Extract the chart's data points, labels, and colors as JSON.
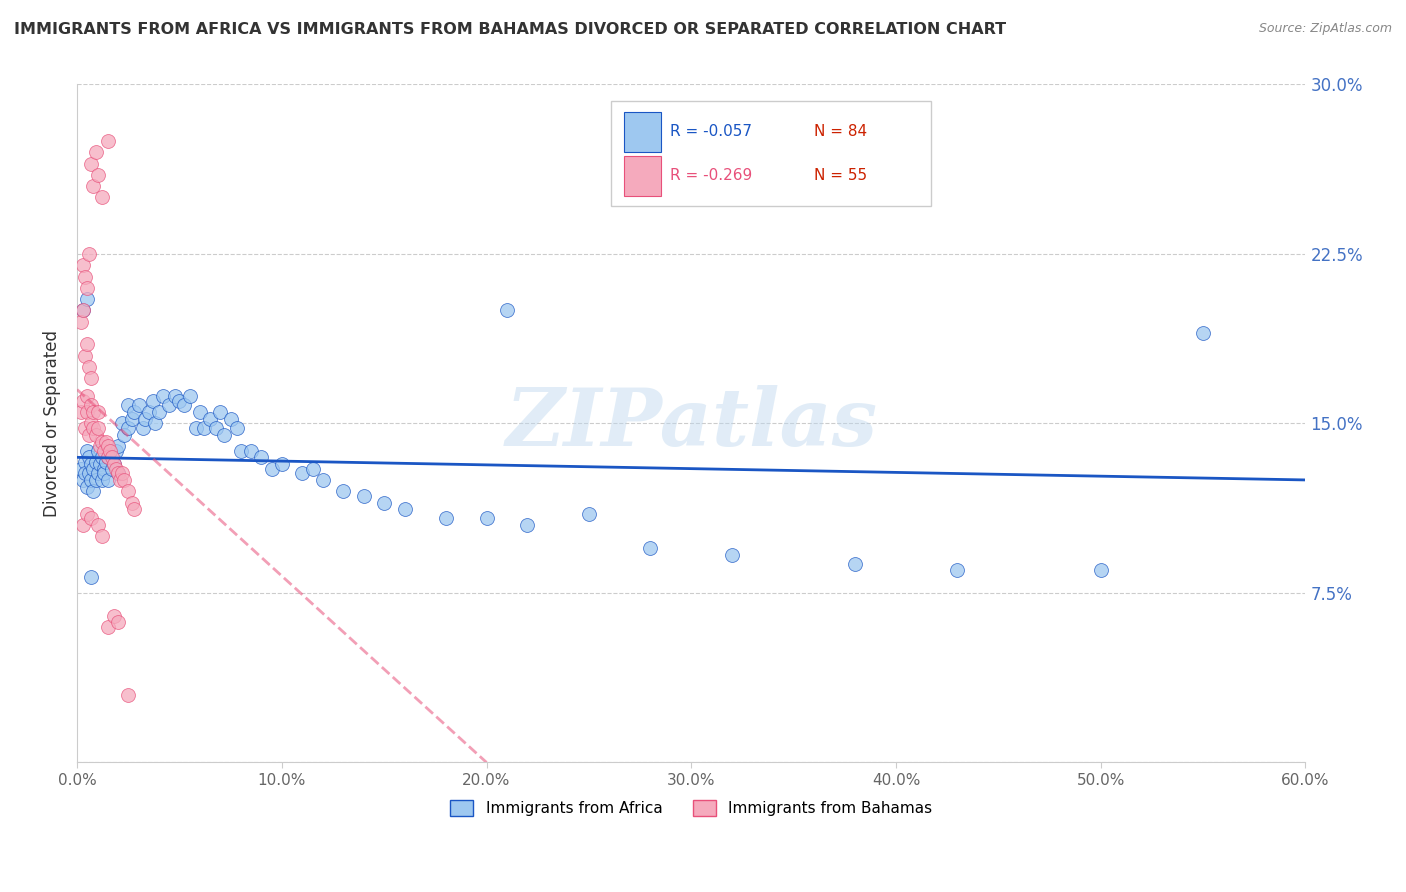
{
  "title": "IMMIGRANTS FROM AFRICA VS IMMIGRANTS FROM BAHAMAS DIVORCED OR SEPARATED CORRELATION CHART",
  "source": "Source: ZipAtlas.com",
  "ylabel": "Divorced or Separated",
  "xlim": [
    0.0,
    0.6
  ],
  "ylim": [
    0.0,
    0.3
  ],
  "xtick_vals": [
    0.0,
    0.1,
    0.2,
    0.3,
    0.4,
    0.5,
    0.6
  ],
  "xtick_labels": [
    "0.0%",
    "10.0%",
    "20.0%",
    "30.0%",
    "40.0%",
    "50.0%",
    "60.0%"
  ],
  "ytick_vals": [
    0.0,
    0.075,
    0.15,
    0.225,
    0.3
  ],
  "ytick_labels_right": [
    "",
    "7.5%",
    "15.0%",
    "22.5%",
    "30.0%"
  ],
  "color_africa": "#9EC8F0",
  "color_bahamas": "#F5AABD",
  "line_color_africa": "#1A56C4",
  "line_color_bahamas": "#E8507A",
  "legend_r_africa": "R = -0.057",
  "legend_n_africa": "N = 84",
  "legend_r_bahamas": "R = -0.269",
  "legend_n_bahamas": "N = 55",
  "legend_label_africa": "Immigrants from Africa",
  "legend_label_bahamas": "Immigrants from Bahamas",
  "watermark": "ZIPatlas",
  "africa_x": [
    0.002,
    0.003,
    0.004,
    0.004,
    0.005,
    0.005,
    0.006,
    0.006,
    0.007,
    0.007,
    0.008,
    0.008,
    0.009,
    0.009,
    0.01,
    0.01,
    0.011,
    0.012,
    0.012,
    0.013,
    0.013,
    0.014,
    0.015,
    0.015,
    0.016,
    0.017,
    0.018,
    0.019,
    0.02,
    0.02,
    0.022,
    0.023,
    0.025,
    0.025,
    0.027,
    0.028,
    0.03,
    0.032,
    0.033,
    0.035,
    0.037,
    0.038,
    0.04,
    0.042,
    0.045,
    0.048,
    0.05,
    0.052,
    0.055,
    0.058,
    0.06,
    0.062,
    0.065,
    0.068,
    0.07,
    0.072,
    0.075,
    0.078,
    0.08,
    0.085,
    0.09,
    0.095,
    0.1,
    0.11,
    0.115,
    0.12,
    0.13,
    0.14,
    0.15,
    0.16,
    0.18,
    0.2,
    0.22,
    0.25,
    0.28,
    0.32,
    0.38,
    0.43,
    0.5,
    0.55,
    0.003,
    0.005,
    0.007,
    0.21
  ],
  "africa_y": [
    0.13,
    0.125,
    0.133,
    0.128,
    0.138,
    0.122,
    0.135,
    0.128,
    0.132,
    0.125,
    0.13,
    0.12,
    0.133,
    0.125,
    0.138,
    0.128,
    0.132,
    0.135,
    0.125,
    0.13,
    0.128,
    0.133,
    0.135,
    0.125,
    0.138,
    0.13,
    0.132,
    0.138,
    0.14,
    0.128,
    0.15,
    0.145,
    0.158,
    0.148,
    0.152,
    0.155,
    0.158,
    0.148,
    0.152,
    0.155,
    0.16,
    0.15,
    0.155,
    0.162,
    0.158,
    0.162,
    0.16,
    0.158,
    0.162,
    0.148,
    0.155,
    0.148,
    0.152,
    0.148,
    0.155,
    0.145,
    0.152,
    0.148,
    0.138,
    0.138,
    0.135,
    0.13,
    0.132,
    0.128,
    0.13,
    0.125,
    0.12,
    0.118,
    0.115,
    0.112,
    0.108,
    0.108,
    0.105,
    0.11,
    0.095,
    0.092,
    0.088,
    0.085,
    0.085,
    0.19,
    0.2,
    0.205,
    0.082,
    0.2
  ],
  "bahamas_x": [
    0.002,
    0.003,
    0.004,
    0.005,
    0.005,
    0.006,
    0.007,
    0.007,
    0.008,
    0.008,
    0.009,
    0.01,
    0.01,
    0.011,
    0.012,
    0.013,
    0.014,
    0.015,
    0.015,
    0.016,
    0.017,
    0.018,
    0.019,
    0.02,
    0.021,
    0.022,
    0.023,
    0.025,
    0.027,
    0.028,
    0.002,
    0.003,
    0.004,
    0.005,
    0.006,
    0.007,
    0.003,
    0.004,
    0.005,
    0.006,
    0.007,
    0.008,
    0.009,
    0.01,
    0.012,
    0.015,
    0.003,
    0.005,
    0.007,
    0.01,
    0.012,
    0.015,
    0.018,
    0.02,
    0.025
  ],
  "bahamas_y": [
    0.155,
    0.16,
    0.148,
    0.155,
    0.162,
    0.145,
    0.15,
    0.158,
    0.148,
    0.155,
    0.145,
    0.148,
    0.155,
    0.14,
    0.142,
    0.138,
    0.142,
    0.14,
    0.135,
    0.138,
    0.135,
    0.132,
    0.13,
    0.128,
    0.125,
    0.128,
    0.125,
    0.12,
    0.115,
    0.112,
    0.195,
    0.2,
    0.18,
    0.185,
    0.175,
    0.17,
    0.22,
    0.215,
    0.21,
    0.225,
    0.265,
    0.255,
    0.27,
    0.26,
    0.25,
    0.275,
    0.105,
    0.11,
    0.108,
    0.105,
    0.1,
    0.06,
    0.065,
    0.062,
    0.03
  ]
}
